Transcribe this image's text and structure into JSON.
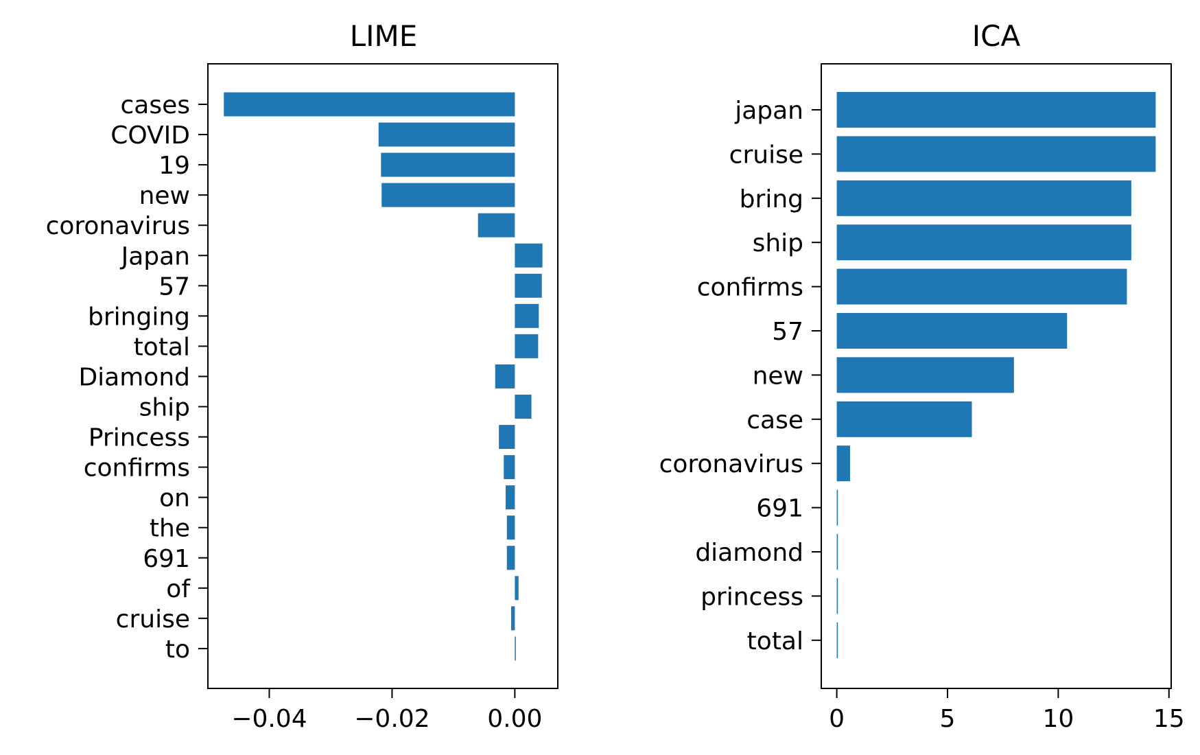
{
  "chart_data": [
    {
      "type": "bar",
      "orientation": "horizontal",
      "title": "LIME",
      "xlabel": "",
      "ylabel": "",
      "categories": [
        "cases",
        "COVID",
        "19",
        "new",
        "coronavirus",
        "Japan",
        "57",
        "bringing",
        "total",
        "Diamond",
        "ship",
        "Princess",
        "confirms",
        "on",
        "the",
        "691",
        "of",
        "cruise",
        "to"
      ],
      "values": [
        -0.0474,
        -0.0222,
        -0.0218,
        -0.0217,
        -0.006,
        0.0045,
        0.0044,
        0.0039,
        0.0038,
        -0.0032,
        0.0027,
        -0.0026,
        -0.0018,
        -0.0015,
        -0.0013,
        -0.0013,
        0.0006,
        -0.0006,
        0.0001
      ],
      "xlim": [
        -0.05,
        0.007
      ],
      "xticks": [
        -0.04,
        -0.02,
        0.0
      ],
      "xtick_labels": [
        "−0.04",
        "−0.02",
        "0.00"
      ],
      "color": "#1f77b4"
    },
    {
      "type": "bar",
      "orientation": "horizontal",
      "title": "ICA",
      "xlabel": "",
      "ylabel": "",
      "categories": [
        "japan",
        "cruise",
        "bring",
        "ship",
        "confirms",
        "57",
        "new",
        "case",
        "coronavirus",
        "691",
        "diamond",
        "princess",
        "total"
      ],
      "values": [
        14.4,
        14.4,
        13.3,
        13.3,
        13.1,
        10.4,
        8.0,
        6.1,
        0.6,
        0.05,
        0.05,
        0.05,
        0.05
      ],
      "xlim": [
        -0.7,
        15.1
      ],
      "xticks": [
        0,
        5,
        10,
        15
      ],
      "xtick_labels": [
        "0",
        "5",
        "10",
        "15"
      ],
      "color": "#1f77b4"
    }
  ]
}
